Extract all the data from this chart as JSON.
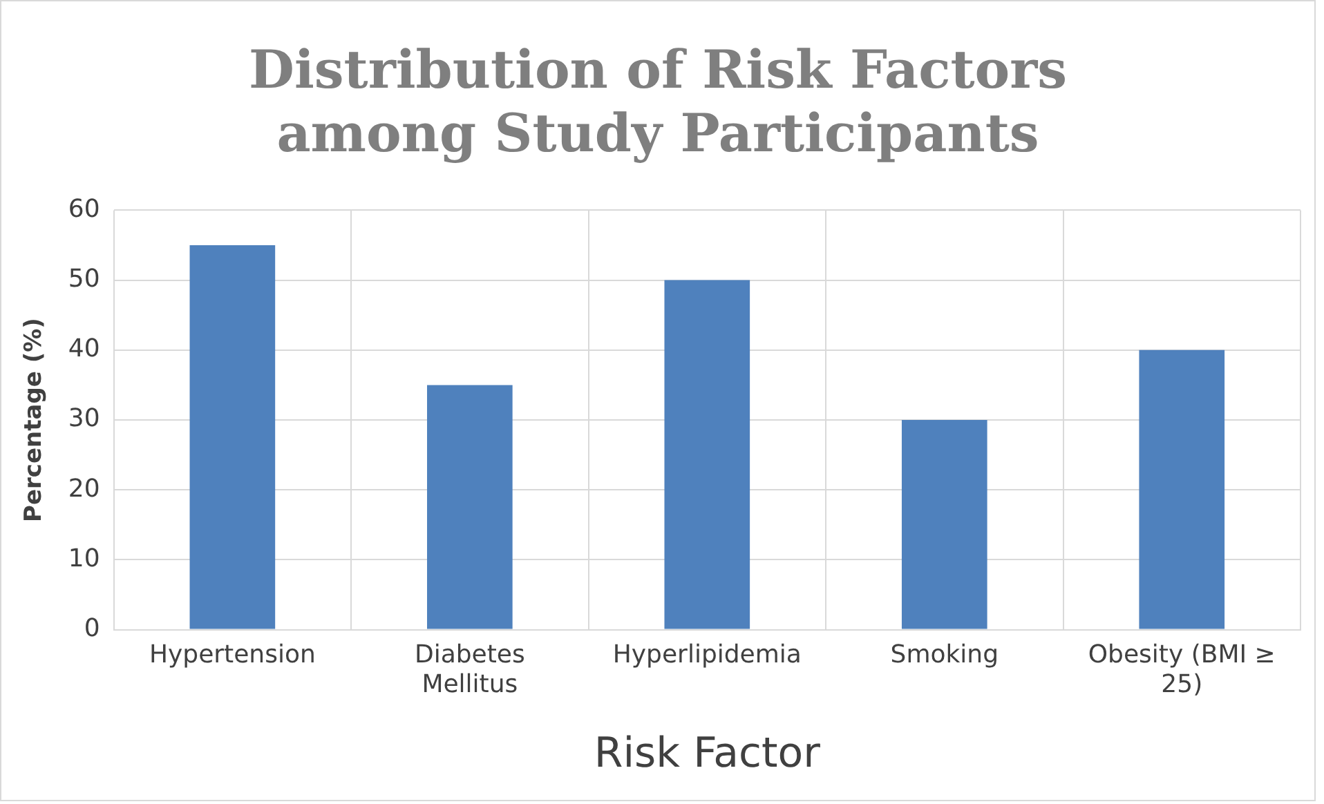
{
  "chart_data": {
    "type": "bar",
    "title": "Distribution of Risk Factors among Study Participants",
    "xlabel": "Risk Factor",
    "ylabel": "Percentage (%)",
    "categories": [
      "Hypertension",
      "Diabetes Mellitus",
      "Hyperlipidemia",
      "Smoking",
      "Obesity (BMI ≥ 25)"
    ],
    "values": [
      55,
      35,
      50,
      30,
      40
    ],
    "color": "#4f81bd",
    "ylim": [
      0,
      60
    ],
    "yticks": [
      0,
      10,
      20,
      30,
      40,
      50,
      60
    ],
    "grid": true,
    "legend": false
  }
}
